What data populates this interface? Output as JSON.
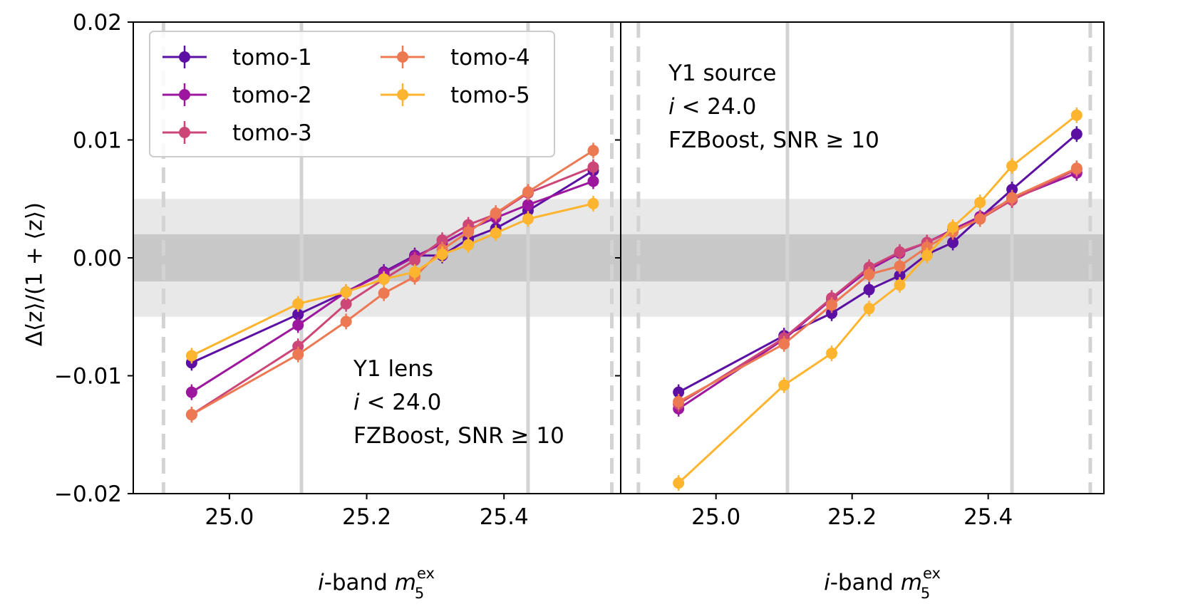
{
  "chart_data": {
    "type": "line",
    "y_axis": {
      "label": "Δ⟨z⟩/(1 + ⟨z⟩)",
      "ylim": [
        -0.02,
        0.02
      ],
      "ticks": [
        -0.02,
        -0.01,
        0.0,
        0.01,
        0.02
      ],
      "tick_labels": [
        "−0.02",
        "−0.01",
        "0.00",
        "0.01",
        "0.02"
      ]
    },
    "x_axis": {
      "label": "i-band m_5^ex",
      "label_parts": {
        "italic_i": "i",
        "band": "-band ",
        "m": "m",
        "sub": "5",
        "sup": "ex"
      },
      "ticks": [
        25.0,
        25.2,
        25.4
      ],
      "tick_labels": [
        "25.0",
        "25.2",
        "25.4"
      ]
    },
    "bands": {
      "outer": [
        -0.005,
        0.005
      ],
      "inner": [
        -0.002,
        0.002
      ],
      "outer_color": "#e8e8e8",
      "inner_color": "#c8c8c8"
    },
    "legend": {
      "placement": "upper-left",
      "entries": [
        {
          "name": "tomo-1",
          "color": "#5c0fa3"
        },
        {
          "name": "tomo-2",
          "color": "#9c179e"
        },
        {
          "name": "tomo-3",
          "color": "#cc4778"
        },
        {
          "name": "tomo-4",
          "color": "#ed7953"
        },
        {
          "name": "tomo-5",
          "color": "#fdb42f"
        }
      ]
    },
    "panels": [
      {
        "annotation": [
          "Y1 lens",
          "i < 24.0",
          "FZBoost, SNR ≥ 10"
        ],
        "xlim": [
          24.86,
          25.57
        ],
        "vlines_solid": [
          25.105,
          25.435
        ],
        "vlines_dashed": [
          24.904,
          25.557
        ],
        "x": [
          24.945,
          25.1,
          25.17,
          25.225,
          25.27,
          25.31,
          25.348,
          25.388,
          25.435,
          25.53
        ],
        "series": [
          {
            "name": "tomo-1",
            "values": [
              -0.0089,
              -0.0048,
              -0.0029,
              -0.0012,
              0.0002,
              0.0002,
              0.0016,
              0.0025,
              0.004,
              0.0074
            ]
          },
          {
            "name": "tomo-2",
            "values": [
              -0.0114,
              -0.0057,
              -0.0029,
              -0.0013,
              0.0001,
              0.0012,
              0.0024,
              0.0034,
              0.0045,
              0.0065
            ]
          },
          {
            "name": "tomo-3",
            "values": [
              -0.0133,
              -0.0075,
              -0.0039,
              -0.0018,
              -0.0002,
              0.0015,
              0.0028,
              0.0037,
              0.0055,
              0.0077
            ]
          },
          {
            "name": "tomo-4",
            "values": [
              -0.0133,
              -0.0082,
              -0.0054,
              -0.003,
              -0.0016,
              0.0007,
              0.0022,
              0.0038,
              0.0056,
              0.0091
            ]
          },
          {
            "name": "tomo-5",
            "values": [
              -0.0083,
              -0.0039,
              -0.0029,
              -0.0018,
              -0.0012,
              0.0003,
              0.0011,
              0.0021,
              0.0033,
              0.0046
            ]
          }
        ]
      },
      {
        "annotation": [
          "Y1 source",
          "i < 24.0",
          "FZBoost, SNR ≥ 10"
        ],
        "xlim": [
          24.86,
          25.57
        ],
        "vlines_solid": [
          25.105,
          25.435
        ],
        "vlines_dashed": [
          24.886,
          25.55
        ],
        "x": [
          24.945,
          25.1,
          25.17,
          25.225,
          25.27,
          25.31,
          25.348,
          25.388,
          25.435,
          25.53
        ],
        "series": [
          {
            "name": "tomo-1",
            "values": [
              -0.0114,
              -0.0066,
              -0.0047,
              -0.0027,
              -0.0015,
              0.0003,
              0.0013,
              0.0034,
              0.0058,
              0.0105
            ]
          },
          {
            "name": "tomo-2",
            "values": [
              -0.0128,
              -0.0069,
              -0.0035,
              -0.001,
              0.0004,
              0.0013,
              0.0024,
              0.0035,
              0.005,
              0.0072
            ]
          },
          {
            "name": "tomo-3",
            "values": [
              -0.0124,
              -0.0068,
              -0.0034,
              -0.0008,
              0.0005,
              0.0013,
              0.0023,
              0.0033,
              0.0049,
              0.0075
            ]
          },
          {
            "name": "tomo-4",
            "values": [
              -0.0122,
              -0.0073,
              -0.004,
              -0.0014,
              -0.0007,
              0.0009,
              0.0022,
              0.0033,
              0.0051,
              0.0076
            ]
          },
          {
            "name": "tomo-5",
            "values": [
              -0.0191,
              -0.0108,
              -0.0081,
              -0.0043,
              -0.0023,
              0.0002,
              0.0026,
              0.0047,
              0.0078,
              0.0121
            ]
          }
        ]
      }
    ]
  }
}
